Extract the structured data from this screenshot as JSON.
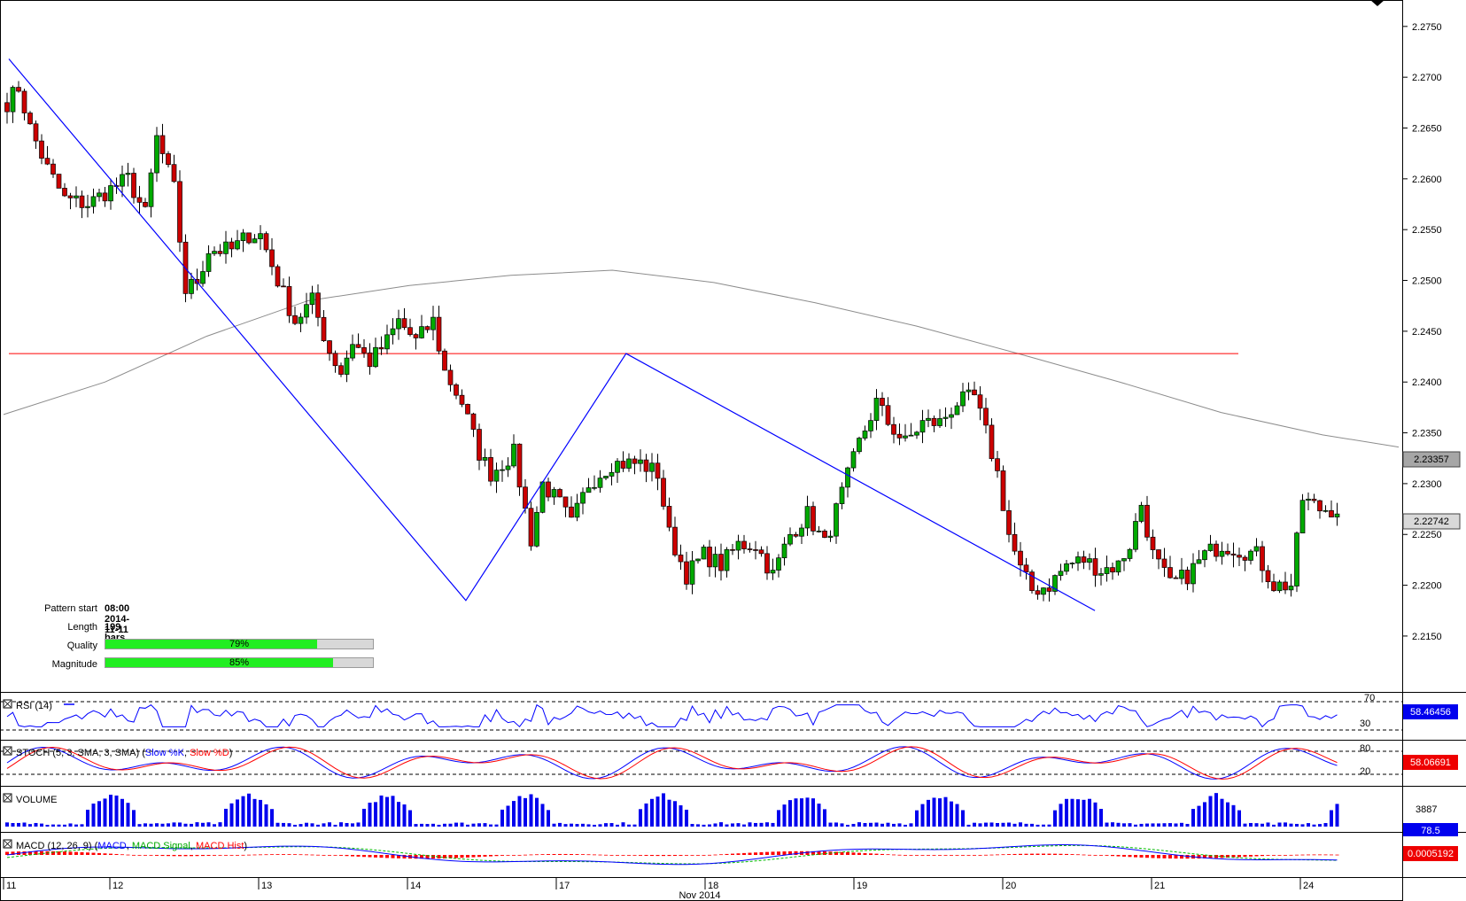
{
  "chart_data": {
    "type": "candlestick",
    "symbol_timeframe": "",
    "price_axis": {
      "ticks": [
        "2.2750",
        "2.2700",
        "2.2650",
        "2.2600",
        "2.2550",
        "2.2500",
        "2.2450",
        "2.2400",
        "2.2350",
        "2.2300",
        "2.2250",
        "2.2200",
        "2.2150"
      ],
      "range": [
        2.2095,
        2.2776
      ],
      "current_price_label": "2.22742",
      "ma_price_label": "2.23357"
    },
    "x_axis": {
      "day_labels": [
        "11",
        "12",
        "13",
        "14",
        "17",
        "18",
        "19",
        "20",
        "21",
        "24"
      ],
      "month_label": "Nov 2014"
    },
    "horizontal_level": 2.2428,
    "pattern_points": [
      {
        "bar": 0,
        "price": 2.2718
      },
      {
        "bar": 77,
        "price": 2.2185
      },
      {
        "bar": 104,
        "price": 2.2428
      },
      {
        "bar": 183,
        "price": 2.2175
      }
    ],
    "pattern_info": {
      "start_label": "Pattern start",
      "start_value": "08:00 2014-11-11",
      "length_label": "Length",
      "length_value": "199 bars",
      "quality_label": "Quality",
      "quality_value": "79%",
      "quality_fraction": 0.79,
      "magnitude_label": "Magnitude",
      "magnitude_value": "85%",
      "magnitude_fraction": 0.85
    },
    "ohlc_series": {
      "start_price": 2.2675,
      "anchors": [
        [
          0,
          2.2675
        ],
        [
          2,
          2.269
        ],
        [
          4,
          2.265
        ],
        [
          7,
          2.261
        ],
        [
          10,
          2.258
        ],
        [
          14,
          2.2575
        ],
        [
          18,
          2.259
        ],
        [
          21,
          2.26
        ],
        [
          24,
          2.2565
        ],
        [
          26,
          2.264
        ],
        [
          29,
          2.259
        ],
        [
          31,
          2.249
        ],
        [
          33,
          2.25
        ],
        [
          35,
          2.253
        ],
        [
          39,
          2.253
        ],
        [
          42,
          2.2545
        ],
        [
          44,
          2.2545
        ],
        [
          47,
          2.25
        ],
        [
          50,
          2.246
        ],
        [
          53,
          2.248
        ],
        [
          56,
          2.243
        ],
        [
          58,
          2.241
        ],
        [
          60,
          2.244
        ],
        [
          63,
          2.242
        ],
        [
          66,
          2.244
        ],
        [
          68,
          2.246
        ],
        [
          71,
          2.244
        ],
        [
          74,
          2.246
        ],
        [
          76,
          2.241
        ],
        [
          79,
          2.238
        ],
        [
          82,
          2.233
        ],
        [
          84,
          2.231
        ],
        [
          88,
          2.233
        ],
        [
          91,
          2.2245
        ],
        [
          93,
          2.23
        ],
        [
          96,
          2.228
        ],
        [
          98,
          2.226
        ],
        [
          101,
          2.23
        ],
        [
          105,
          2.232
        ],
        [
          110,
          2.232
        ],
        [
          113,
          2.231
        ],
        [
          115,
          2.225
        ],
        [
          118,
          2.221
        ],
        [
          121,
          2.223
        ],
        [
          124,
          2.222
        ],
        [
          127,
          2.224
        ],
        [
          130,
          2.224
        ],
        [
          133,
          2.221
        ],
        [
          136,
          2.225
        ],
        [
          139,
          2.227
        ],
        [
          142,
          2.224
        ],
        [
          145,
          2.229
        ],
        [
          148,
          2.234
        ],
        [
          151,
          2.238
        ],
        [
          153,
          2.236
        ],
        [
          156,
          2.234
        ],
        [
          159,
          2.236
        ],
        [
          162,
          2.236
        ],
        [
          165,
          2.238
        ],
        [
          168,
          2.2385
        ],
        [
          170,
          2.235
        ],
        [
          172,
          2.231
        ],
        [
          174,
          2.225
        ],
        [
          176,
          2.2215
        ],
        [
          178,
          2.2195
        ],
        [
          181,
          2.22
        ],
        [
          184,
          2.222
        ],
        [
          187,
          2.2225
        ],
        [
          190,
          2.2215
        ],
        [
          193,
          2.222
        ],
        [
          195,
          2.224
        ],
        [
          197,
          2.228
        ],
        [
          199,
          2.223
        ],
        [
          202,
          2.22
        ],
        [
          205,
          2.221
        ],
        [
          208,
          2.223
        ],
        [
          211,
          2.224
        ],
        [
          214,
          2.2235
        ],
        [
          217,
          2.223
        ],
        [
          220,
          2.22
        ],
        [
          223,
          2.22
        ],
        [
          225,
          2.2285
        ],
        [
          228,
          2.2275
        ],
        [
          231,
          2.2275
        ]
      ],
      "bar_count": 232,
      "wick": 0.0012
    },
    "moving_average_curve": [
      [
        0,
        2.2368
      ],
      [
        20,
        2.24
      ],
      [
        40,
        2.2445
      ],
      [
        60,
        2.248
      ],
      [
        80,
        2.2495
      ],
      [
        100,
        2.2505
      ],
      [
        120,
        2.251
      ],
      [
        140,
        2.2498
      ],
      [
        160,
        2.2478
      ],
      [
        180,
        2.2455
      ],
      [
        200,
        2.2428
      ],
      [
        220,
        2.24
      ],
      [
        240,
        2.237
      ],
      [
        260,
        2.2348
      ],
      [
        275,
        2.2336
      ]
    ],
    "indicators": [
      {
        "id": "rsi",
        "title": "RSI (14)",
        "color": "#0000ff",
        "levels": [
          "70",
          "30"
        ],
        "value_label": "58.46456"
      },
      {
        "id": "stoch",
        "title": "STOCH (5, 3, SMA, 3, SMA)",
        "legend": [
          {
            "name": "Slow %K",
            "color": "#0000ff"
          },
          {
            "name": "Slow %D",
            "color": "#ff0000"
          }
        ],
        "levels": [
          "80",
          "20"
        ],
        "value_label": "58.06691"
      },
      {
        "id": "volume",
        "title": "VOLUME",
        "color": "#0000ff",
        "scale_label": "3887",
        "value_label": "78.5"
      },
      {
        "id": "macd",
        "title": "MACD (12, 26, 9)",
        "legend": [
          {
            "name": "MACD",
            "color": "#0000ff"
          },
          {
            "name": "MACD Signal",
            "color": "#00bb00"
          },
          {
            "name": "MACD Hist",
            "color": "#ff0000"
          }
        ],
        "value_label": "0.0005192"
      }
    ]
  }
}
